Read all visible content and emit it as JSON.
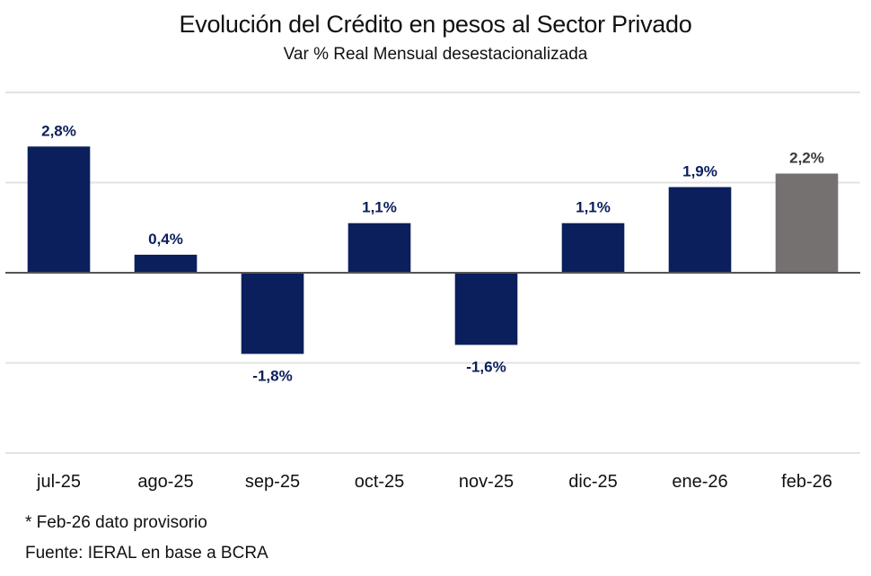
{
  "chart_data": {
    "type": "bar",
    "title": "Evolución del Crédito en pesos al Sector Privado",
    "subtitle": "Var % Real Mensual desestacionalizada",
    "xlabel": "",
    "ylabel": "",
    "categories": [
      "jul-25",
      "ago-25",
      "sep-25",
      "oct-25",
      "nov-25",
      "dic-25",
      "ene-26",
      "feb-26"
    ],
    "values": [
      2.8,
      0.4,
      -1.8,
      1.1,
      -1.6,
      1.1,
      1.9,
      2.2
    ],
    "data_labels": [
      "2,8%",
      "0,4%",
      "-1,8%",
      "1,1%",
      "-1,6%",
      "1,1%",
      "1,9%",
      "2,2%"
    ],
    "provisional": [
      false,
      false,
      false,
      false,
      false,
      false,
      false,
      true
    ],
    "ylim": [
      -4,
      4
    ],
    "yticks": [
      -4,
      -2,
      0,
      2,
      4
    ],
    "y_tick_labels_visible": false,
    "grid": true,
    "legend": "none",
    "colors": {
      "bar": "#0b1f5c",
      "bar_provisional": "#767171",
      "label": "#0b1f5c",
      "label_provisional": "#3a3a3a",
      "grid": "#e3e3e3",
      "axis": "#555555"
    }
  },
  "footnotes": {
    "provisional_note": "* Feb-26 dato provisorio",
    "source": "Fuente: IERAL en base a BCRA"
  }
}
